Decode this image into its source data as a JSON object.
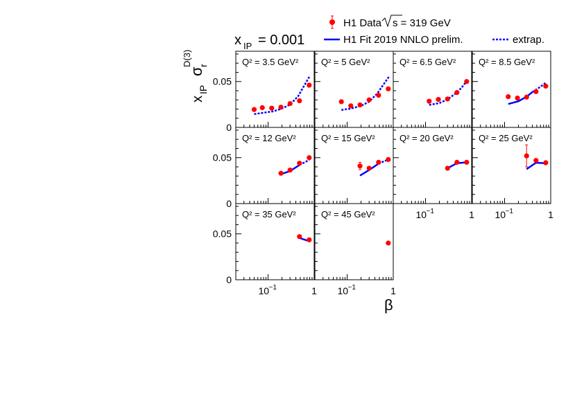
{
  "header": {
    "xpom_label": "x",
    "xpom_sub": "IP",
    "xpom_value": "= 0.001"
  },
  "legend": {
    "data_label": "H1 Data",
    "sqrt_s_label": "s = 319 GeV",
    "fit_label": "H1 Fit 2019 NNLO prelim.",
    "extrap_label": "extrap."
  },
  "axes": {
    "ylabel_main": "x",
    "ylabel_sub": "IP",
    "ylabel_sigma": "σ",
    "ylabel_sigma_sub": "r",
    "ylabel_sigma_sup": "D(3)",
    "xlabel": "β",
    "ytick_005": "0.05",
    "ytick_0": "0",
    "xtick_01_base": "10",
    "xtick_01_exp": "−1",
    "xtick_1": "1"
  },
  "colors": {
    "data": "#ff0000",
    "fit": "#0000ff",
    "extrap": "#0000ff",
    "frame": "#000000"
  },
  "chart_data": {
    "type": "scatter",
    "x_scale": "log",
    "xlim": [
      0.02,
      1.0
    ],
    "ylim": [
      0,
      0.083
    ],
    "grid": false,
    "legend_position": "top-right",
    "panels": [
      {
        "label": "Q² = 3.5 GeV²",
        "q2": "3.5",
        "data": [
          [
            0.05,
            0.0195,
            0.002
          ],
          [
            0.075,
            0.0215,
            0.001
          ],
          [
            0.12,
            0.021,
            0.001
          ],
          [
            0.19,
            0.022,
            0.001
          ],
          [
            0.3,
            0.026,
            0.001
          ],
          [
            0.48,
            0.029,
            0.001
          ],
          [
            0.78,
            0.046,
            0.003
          ]
        ],
        "fit": [],
        "extrap": [
          [
            0.05,
            0.0145
          ],
          [
            0.08,
            0.016
          ],
          [
            0.13,
            0.0175
          ],
          [
            0.2,
            0.0205
          ],
          [
            0.3,
            0.025
          ],
          [
            0.45,
            0.034
          ],
          [
            0.6,
            0.045
          ],
          [
            0.8,
            0.056
          ]
        ]
      },
      {
        "label": "Q² = 5 GeV²",
        "q2": "5",
        "data": [
          [
            0.075,
            0.028,
            0.001
          ],
          [
            0.12,
            0.0235,
            0.001
          ],
          [
            0.19,
            0.0245,
            0.001
          ],
          [
            0.3,
            0.03,
            0.001
          ],
          [
            0.48,
            0.035,
            0.001
          ],
          [
            0.78,
            0.042,
            0.002
          ]
        ],
        "fit": [],
        "extrap": [
          [
            0.075,
            0.019
          ],
          [
            0.12,
            0.0205
          ],
          [
            0.2,
            0.0235
          ],
          [
            0.3,
            0.028
          ],
          [
            0.45,
            0.037
          ],
          [
            0.6,
            0.046
          ],
          [
            0.8,
            0.055
          ]
        ]
      },
      {
        "label": "Q² = 6.5 GeV²",
        "q2": "6.5",
        "data": [
          [
            0.12,
            0.0285,
            0.001
          ],
          [
            0.19,
            0.0305,
            0.001
          ],
          [
            0.3,
            0.031,
            0.001
          ],
          [
            0.48,
            0.038,
            0.001
          ],
          [
            0.78,
            0.05,
            0.003
          ]
        ],
        "fit": [],
        "extrap": [
          [
            0.12,
            0.0245
          ],
          [
            0.2,
            0.0265
          ],
          [
            0.3,
            0.0305
          ],
          [
            0.45,
            0.037
          ],
          [
            0.6,
            0.043
          ],
          [
            0.8,
            0.051
          ]
        ]
      },
      {
        "label": "Q² = 8.5 GeV²",
        "q2": "8.5",
        "data": [
          [
            0.12,
            0.0335,
            0.002
          ],
          [
            0.19,
            0.032,
            0.001
          ],
          [
            0.3,
            0.033,
            0.001
          ],
          [
            0.48,
            0.039,
            0.001
          ],
          [
            0.78,
            0.045,
            0.002
          ]
        ],
        "fit": [
          [
            0.12,
            0.0255
          ],
          [
            0.2,
            0.0285
          ],
          [
            0.3,
            0.0335
          ],
          [
            0.4,
            0.0385
          ]
        ],
        "extrap": [
          [
            0.4,
            0.0385
          ],
          [
            0.55,
            0.043
          ],
          [
            0.8,
            0.049
          ]
        ]
      },
      {
        "label": "Q² = 12 GeV²",
        "q2": "12",
        "data": [
          [
            0.19,
            0.033,
            0.001
          ],
          [
            0.3,
            0.0365,
            0.001
          ],
          [
            0.48,
            0.044,
            0.001
          ],
          [
            0.78,
            0.05,
            0.001
          ]
        ],
        "fit": [
          [
            0.19,
            0.032
          ],
          [
            0.3,
            0.0355
          ],
          [
            0.48,
            0.042
          ]
        ],
        "extrap": [
          [
            0.48,
            0.042
          ],
          [
            0.78,
            0.0475
          ]
        ]
      },
      {
        "label": "Q² = 15 GeV²",
        "q2": "15",
        "data": [
          [
            0.19,
            0.041,
            0.004
          ],
          [
            0.3,
            0.0385,
            0.001
          ],
          [
            0.48,
            0.045,
            0.001
          ],
          [
            0.78,
            0.048,
            0.001
          ]
        ],
        "fit": [
          [
            0.19,
            0.0305
          ],
          [
            0.3,
            0.0365
          ],
          [
            0.48,
            0.0435
          ]
        ],
        "extrap": [
          [
            0.48,
            0.0435
          ],
          [
            0.78,
            0.048
          ]
        ]
      },
      {
        "label": "Q² = 20 GeV²",
        "q2": "20",
        "data": [
          [
            0.3,
            0.0385,
            0.001
          ],
          [
            0.48,
            0.045,
            0.001
          ],
          [
            0.78,
            0.045,
            0.001
          ]
        ],
        "fit": [
          [
            0.3,
            0.0385
          ],
          [
            0.48,
            0.044
          ],
          [
            0.78,
            0.045
          ]
        ],
        "extrap": []
      },
      {
        "label": "Q² = 25 GeV²",
        "q2": "25",
        "data": [
          [
            0.3,
            0.052,
            0.012
          ],
          [
            0.48,
            0.047,
            0.001
          ],
          [
            0.78,
            0.0445,
            0.001
          ]
        ],
        "fit": [
          [
            0.3,
            0.0375
          ],
          [
            0.48,
            0.0445
          ],
          [
            0.78,
            0.044
          ]
        ],
        "extrap": []
      },
      {
        "label": "Q² = 35 GeV²",
        "q2": "35",
        "data": [
          [
            0.48,
            0.047,
            0.001
          ],
          [
            0.78,
            0.0435,
            0.001
          ]
        ],
        "fit": [
          [
            0.48,
            0.0455
          ],
          [
            0.78,
            0.042
          ]
        ],
        "extrap": []
      },
      {
        "label": "Q² = 45 GeV²",
        "q2": "45",
        "data": [
          [
            0.78,
            0.04,
            0.001
          ]
        ],
        "fit": [],
        "extrap": []
      }
    ]
  }
}
